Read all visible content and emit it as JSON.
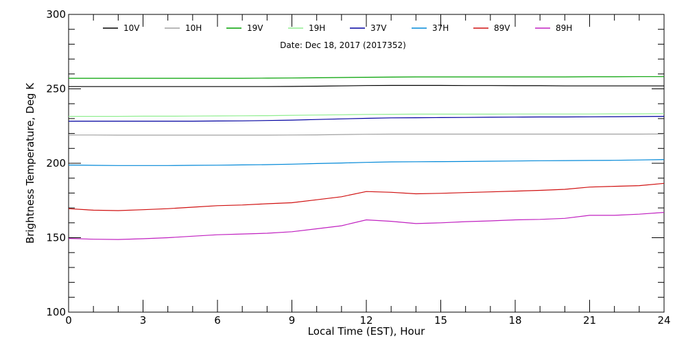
{
  "chart_data": {
    "type": "line",
    "subtitle": "Date: Dec 18, 2017 (2017352)",
    "xlabel": "Local Time (EST), Hour",
    "ylabel": "Brightness Temperature, Deg K",
    "xlim": [
      0,
      24
    ],
    "ylim": [
      100,
      300
    ],
    "xticks": [
      0,
      3,
      6,
      9,
      12,
      15,
      18,
      21,
      24
    ],
    "yticks": [
      100,
      150,
      200,
      250,
      300
    ],
    "x_tick_labels": [
      "0",
      "3",
      "6",
      "9",
      "12",
      "15",
      "18",
      "21",
      "24"
    ],
    "y_tick_labels": [
      "100",
      "150",
      "200",
      "250",
      "300"
    ],
    "grid": false,
    "legend_position": "top",
    "x": [
      0,
      1,
      2,
      3,
      4,
      5,
      6,
      7,
      8,
      9,
      10,
      11,
      12,
      13,
      14,
      15,
      16,
      17,
      18,
      19,
      20,
      21,
      22,
      23,
      24
    ],
    "series": [
      {
        "name": "10V",
        "color": "#000000",
        "values": [
          251.5,
          251.5,
          251.5,
          251.5,
          251.5,
          251.5,
          251.5,
          251.5,
          251.5,
          251.6,
          251.8,
          252.0,
          252.2,
          252.3,
          252.3,
          252.3,
          252.2,
          252.2,
          252.1,
          252.1,
          252.0,
          252.0,
          252.0,
          252.0,
          252.0
        ]
      },
      {
        "name": "10H",
        "color": "#a0a0a0",
        "values": [
          219.0,
          219.0,
          218.9,
          218.9,
          218.9,
          218.9,
          218.9,
          218.9,
          218.9,
          219.0,
          219.1,
          219.3,
          219.5,
          219.6,
          219.6,
          219.6,
          219.6,
          219.6,
          219.6,
          219.6,
          219.6,
          219.6,
          219.6,
          219.6,
          219.7
        ]
      },
      {
        "name": "19V",
        "color": "#00a000",
        "values": [
          257.1,
          257.1,
          257.1,
          257.1,
          257.1,
          257.1,
          257.1,
          257.1,
          257.2,
          257.3,
          257.4,
          257.6,
          257.8,
          257.9,
          258.0,
          258.0,
          258.0,
          258.0,
          258.0,
          258.0,
          258.0,
          258.1,
          258.1,
          258.2,
          258.2
        ]
      },
      {
        "name": "19H",
        "color": "#90ee90",
        "values": [
          231.5,
          231.5,
          231.5,
          231.6,
          231.6,
          231.7,
          231.8,
          231.9,
          232.0,
          232.2,
          232.4,
          232.6,
          232.8,
          232.9,
          233.0,
          233.0,
          233.0,
          233.0,
          233.1,
          233.1,
          233.1,
          233.1,
          233.2,
          233.2,
          233.3
        ]
      },
      {
        "name": "37V",
        "color": "#0000a0",
        "values": [
          228.3,
          228.3,
          228.3,
          228.3,
          228.3,
          228.3,
          228.4,
          228.5,
          228.7,
          229.0,
          229.4,
          229.8,
          230.2,
          230.5,
          230.6,
          230.7,
          230.8,
          230.9,
          231.0,
          231.1,
          231.1,
          231.2,
          231.3,
          231.4,
          231.5
        ]
      },
      {
        "name": "37H",
        "color": "#0088d8",
        "values": [
          198.8,
          198.6,
          198.5,
          198.5,
          198.5,
          198.6,
          198.7,
          198.9,
          199.1,
          199.4,
          199.8,
          200.2,
          200.6,
          200.9,
          201.0,
          201.1,
          201.2,
          201.4,
          201.5,
          201.7,
          201.8,
          201.9,
          202.0,
          202.2,
          202.5
        ]
      },
      {
        "name": "89V",
        "color": "#d01010",
        "values": [
          169.5,
          168.5,
          168.2,
          168.8,
          169.5,
          170.5,
          171.5,
          172.0,
          172.8,
          173.5,
          175.5,
          177.5,
          181.0,
          180.5,
          179.5,
          179.8,
          180.3,
          180.8,
          181.3,
          181.8,
          182.5,
          184.0,
          184.5,
          185.0,
          186.5
        ]
      },
      {
        "name": "89H",
        "color": "#c020c0",
        "values": [
          149.5,
          149.0,
          148.8,
          149.3,
          150.0,
          151.0,
          152.0,
          152.5,
          153.0,
          154.0,
          156.0,
          158.0,
          162.0,
          161.0,
          159.5,
          160.0,
          160.8,
          161.3,
          162.0,
          162.3,
          163.0,
          165.0,
          165.0,
          165.8,
          167.0
        ]
      }
    ]
  }
}
